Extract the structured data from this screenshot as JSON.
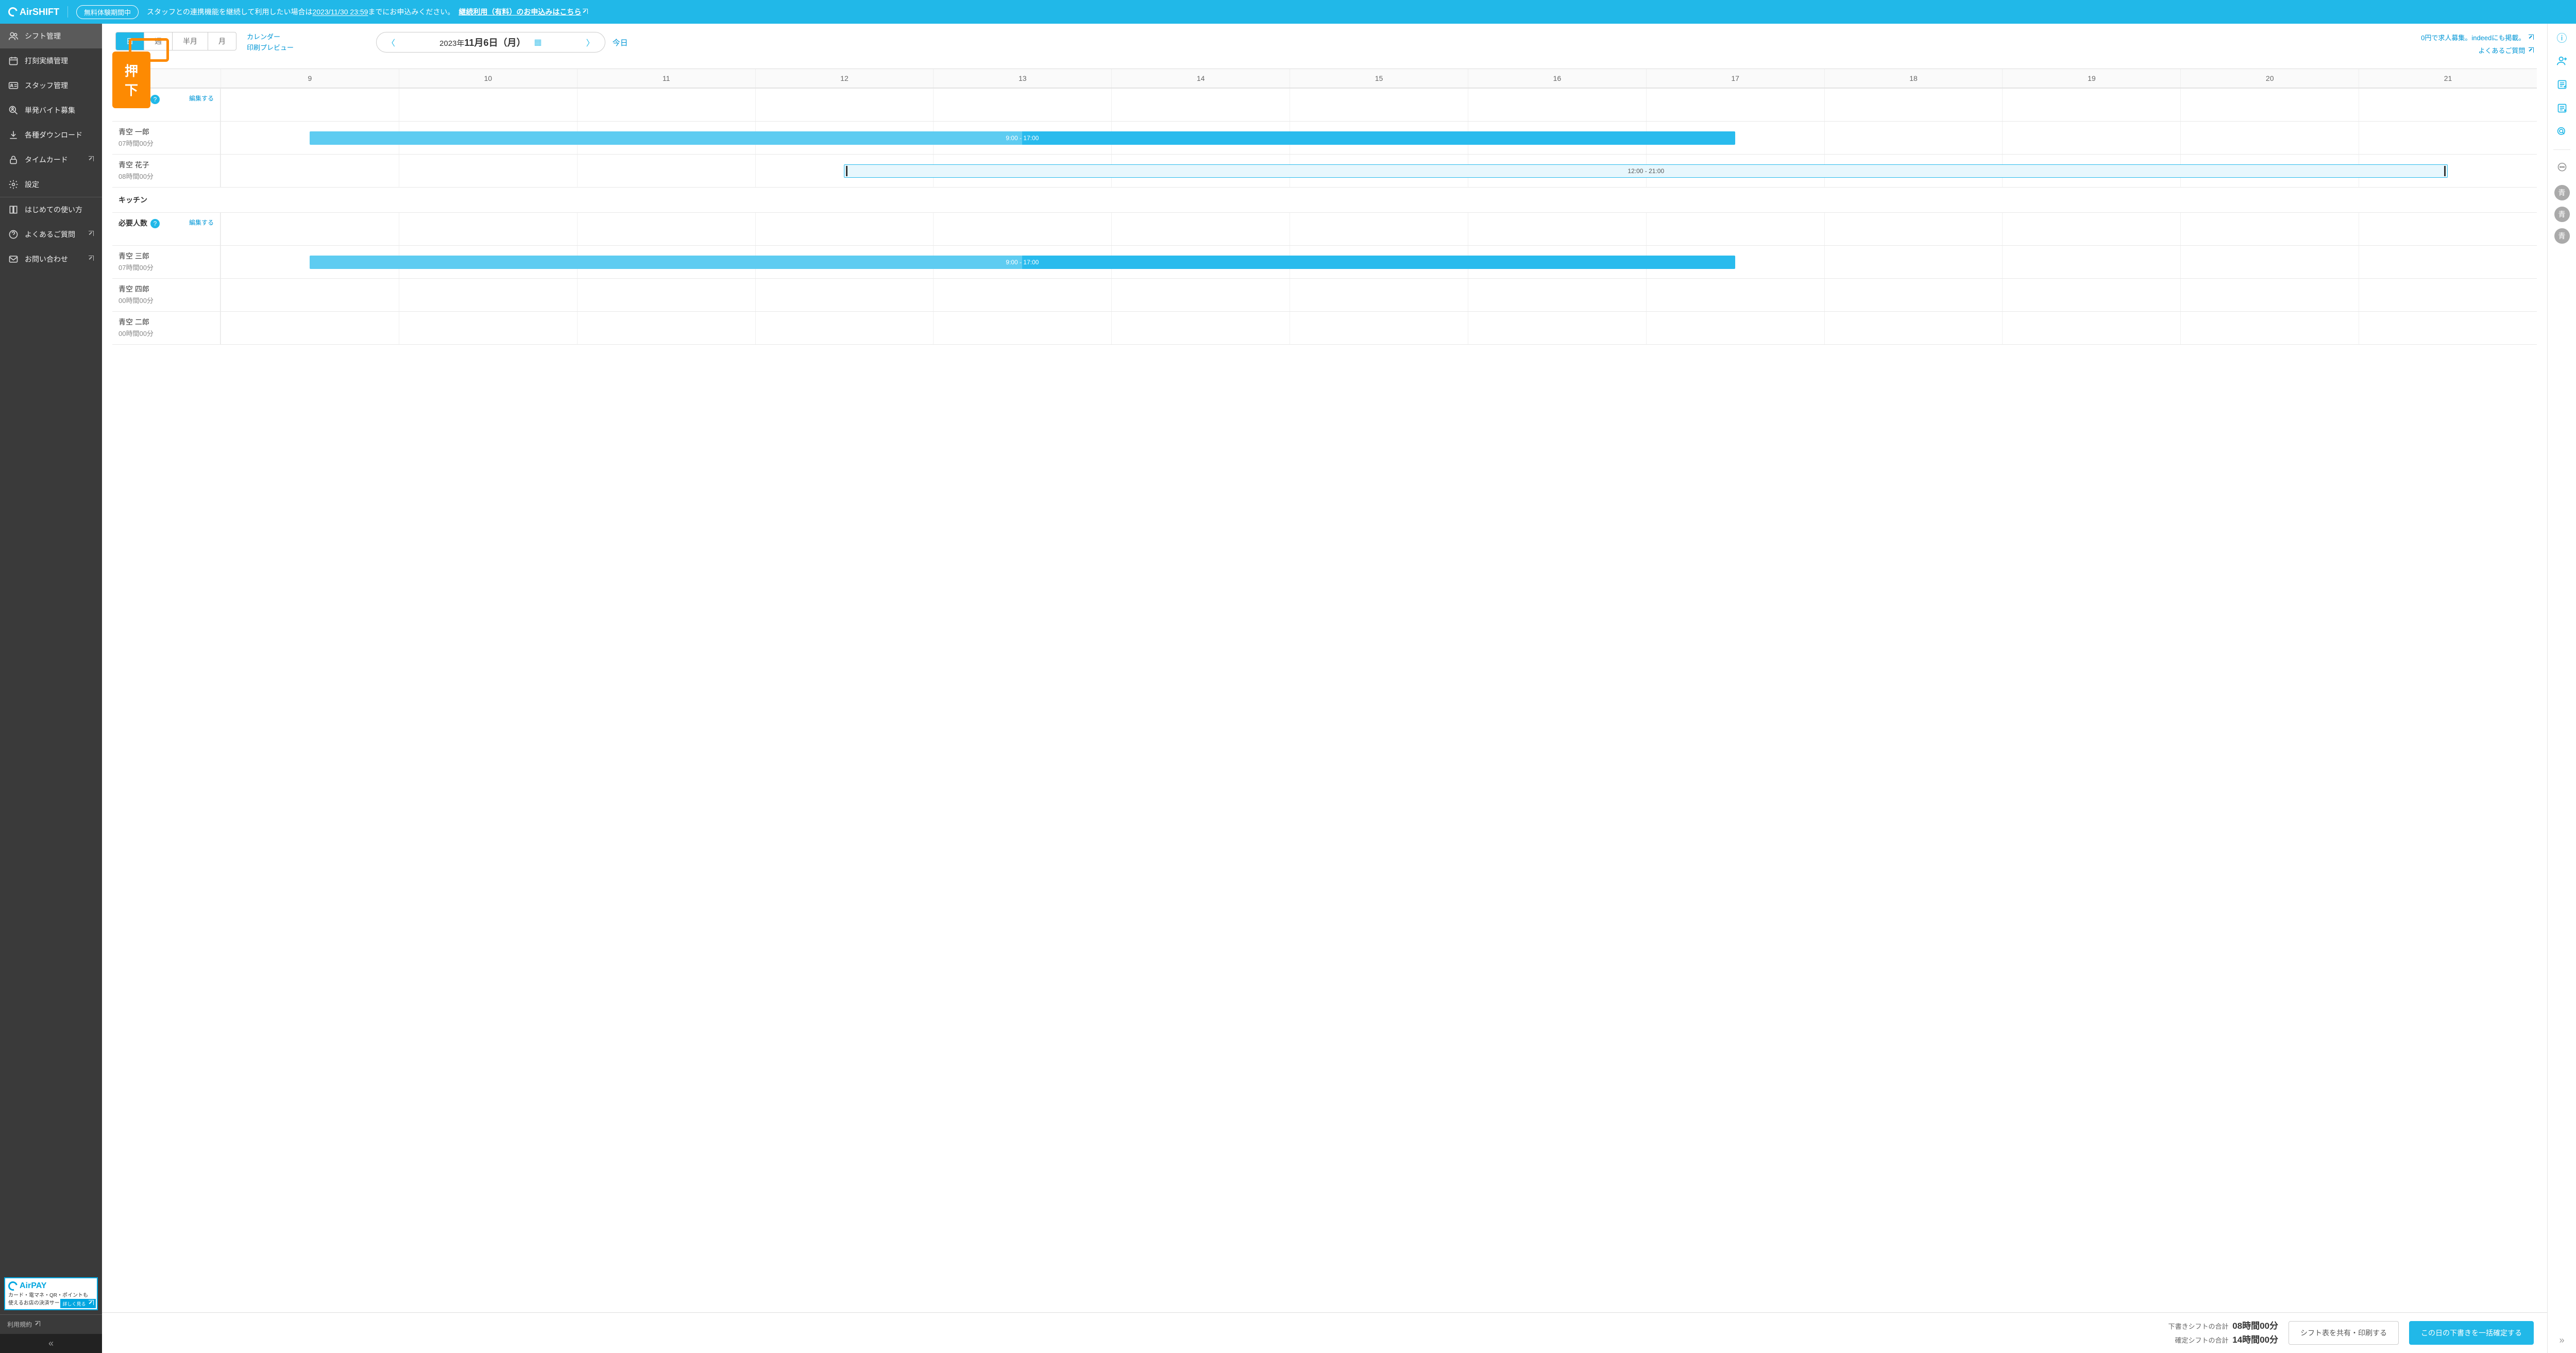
{
  "banner": {
    "logo": "AirSHIFT",
    "trial_badge": "無料体験期間中",
    "text_prefix": "スタッフとの連携機能を継続して利用したい場合は",
    "deadline": "2023/11/30 23:59",
    "text_suffix": "までにお申込みください。",
    "cta": "継続利用（有料）のお申込みはこちら"
  },
  "sidebar": {
    "items": [
      {
        "label": "シフト管理",
        "icon": "users",
        "active": true,
        "ext": false
      },
      {
        "label": "打刻実績管理",
        "icon": "calendar",
        "active": false,
        "ext": false
      },
      {
        "label": "スタッフ管理",
        "icon": "idcard",
        "active": false,
        "ext": false
      },
      {
        "label": "単発バイト募集",
        "icon": "search-person",
        "active": false,
        "ext": false
      },
      {
        "label": "各種ダウンロード",
        "icon": "download",
        "active": false,
        "ext": false
      },
      {
        "label": "タイムカード",
        "icon": "lock",
        "active": false,
        "ext": true
      },
      {
        "label": "設定",
        "icon": "gear",
        "active": false,
        "ext": false
      }
    ],
    "help_items": [
      {
        "label": "はじめての使い方",
        "icon": "book",
        "ext": false
      },
      {
        "label": "よくあるご質問",
        "icon": "help",
        "ext": true
      },
      {
        "label": "お問い合わせ",
        "icon": "mail",
        "ext": true
      }
    ],
    "airpay": {
      "title": "AirPAY",
      "line1": "カード・電マネ・QR・ポイントも",
      "line2": "使えるお店の決済サービス",
      "btn": "詳しく見る"
    },
    "terms": "利用規約"
  },
  "callout": "押下",
  "toolbar": {
    "views": [
      {
        "label": "日",
        "selected": true
      },
      {
        "label": "週",
        "selected": false
      },
      {
        "label": "半月",
        "selected": false
      },
      {
        "label": "月",
        "selected": false
      }
    ],
    "calendar_link": "カレンダー",
    "print_link": "印刷プレビュー",
    "date_prefix": "2023年",
    "date_main": "11月6日（月）",
    "today": "今日",
    "display_settings": "表示設定",
    "right_link1": "0円で求人募集。indeedにも掲載。",
    "right_link2": "よくあるご質問"
  },
  "schedule": {
    "time_start_hour": 9,
    "time_end_hour": 21,
    "hours": [
      "9",
      "10",
      "11",
      "12",
      "13",
      "14",
      "15",
      "16",
      "17",
      "18",
      "19",
      "20",
      "21"
    ],
    "required_label": "必要人数",
    "edit_label": "編集する",
    "groups": [
      {
        "title": null,
        "rows": [
          {
            "name": "青空 一郎",
            "duration": "07時間00分",
            "shift": {
              "start": 9,
              "end": 17,
              "label": "9:00 - 17:00",
              "type": "solid",
              "overlay_to": 13
            }
          },
          {
            "name": "青空 花子",
            "duration": "08時間00分",
            "shift": {
              "start": 12,
              "end": 21,
              "label": "12:00 - 21:00",
              "type": "draft"
            }
          }
        ]
      },
      {
        "title": "キッチン",
        "rows": [
          {
            "name": "青空 三郎",
            "duration": "07時間00分",
            "shift": {
              "start": 9,
              "end": 17,
              "label": "9:00 - 17:00",
              "type": "solid",
              "overlay_to": 13
            }
          },
          {
            "name": "青空 四郎",
            "duration": "00時間00分",
            "shift": null
          },
          {
            "name": "青空 二郎",
            "duration": "00時間00分",
            "shift": null
          }
        ]
      }
    ]
  },
  "footer": {
    "draft_label": "下書きシフトの合計",
    "draft_total": "08時間00分",
    "confirmed_label": "確定シフトの合計",
    "confirmed_total": "14時間00分",
    "share_btn": "シフト表を共有・印刷する",
    "confirm_btn": "この日の下書きを一括確定する"
  },
  "rail": {
    "badges": [
      "青",
      "青",
      "青"
    ]
  }
}
